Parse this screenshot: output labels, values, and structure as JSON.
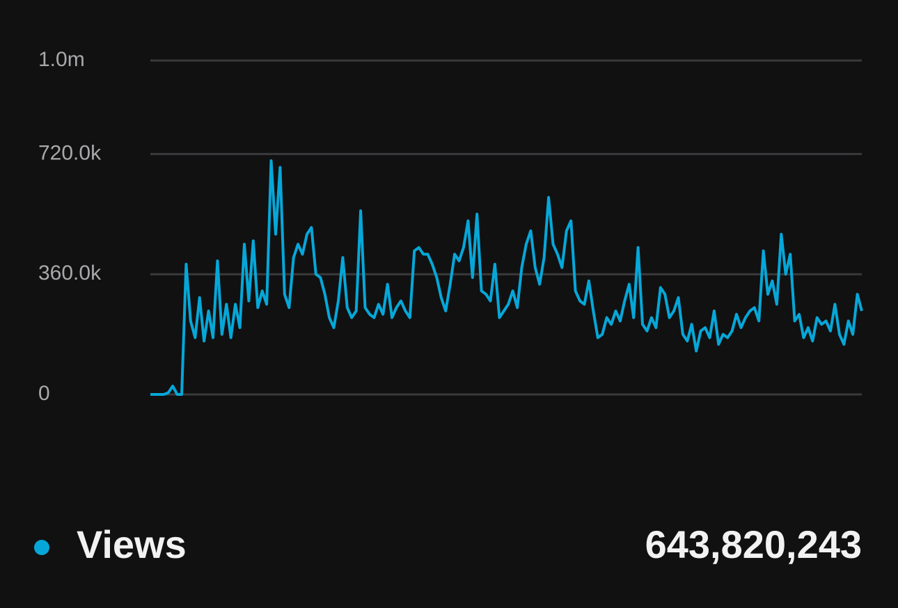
{
  "chart_data": {
    "type": "line",
    "series": [
      {
        "name": "Views",
        "color": "#06a7d8",
        "values": [
          0,
          0,
          0,
          0,
          5000,
          25000,
          0,
          0,
          390000,
          220000,
          170000,
          290000,
          160000,
          250000,
          170000,
          400000,
          180000,
          270000,
          170000,
          270000,
          200000,
          450000,
          280000,
          460000,
          260000,
          310000,
          270000,
          700000,
          480000,
          680000,
          300000,
          260000,
          410000,
          450000,
          420000,
          480000,
          500000,
          360000,
          350000,
          300000,
          230000,
          200000,
          280000,
          410000,
          260000,
          230000,
          250000,
          550000,
          260000,
          240000,
          230000,
          270000,
          240000,
          330000,
          230000,
          260000,
          280000,
          250000,
          230000,
          430000,
          440000,
          420000,
          420000,
          390000,
          350000,
          290000,
          250000,
          330000,
          420000,
          400000,
          440000,
          520000,
          350000,
          540000,
          310000,
          300000,
          280000,
          390000,
          230000,
          250000,
          270000,
          310000,
          260000,
          380000,
          450000,
          490000,
          380000,
          330000,
          410000,
          590000,
          450000,
          420000,
          380000,
          490000,
          520000,
          310000,
          280000,
          270000,
          340000,
          250000,
          170000,
          180000,
          230000,
          210000,
          250000,
          220000,
          280000,
          330000,
          230000,
          440000,
          210000,
          190000,
          230000,
          200000,
          320000,
          300000,
          230000,
          250000,
          290000,
          180000,
          160000,
          210000,
          130000,
          190000,
          200000,
          170000,
          250000,
          150000,
          180000,
          170000,
          190000,
          240000,
          200000,
          230000,
          250000,
          260000,
          220000,
          430000,
          300000,
          340000,
          270000,
          480000,
          360000,
          420000,
          220000,
          240000,
          170000,
          200000,
          160000,
          230000,
          210000,
          220000,
          190000,
          270000,
          180000,
          150000,
          220000,
          180000,
          300000,
          250000
        ]
      }
    ],
    "total": "643,820,243",
    "ylim": [
      0,
      1000000
    ],
    "yticks": [
      0,
      {
        "value": 360000,
        "label": "360.0k"
      },
      {
        "value": 720000,
        "label": "720.0k"
      },
      {
        "value": 1000000,
        "label": "1.0m"
      }
    ],
    "grid": true
  }
}
